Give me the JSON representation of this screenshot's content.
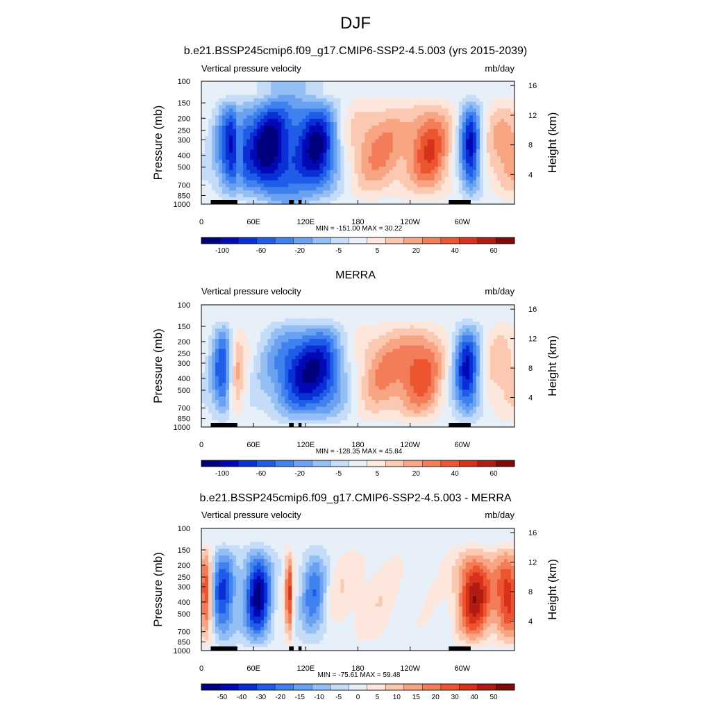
{
  "figure": {
    "title": "DJF"
  },
  "colors": {
    "scale": [
      "#00007f",
      "#0009b5",
      "#0a2fd6",
      "#1f5de8",
      "#3f81ee",
      "#6aa1f1",
      "#94bff5",
      "#c4dcf8",
      "#e7eff9",
      "#fde7dc",
      "#fbc9b1",
      "#f8a584",
      "#f37d58",
      "#ec5530",
      "#d8311c",
      "#b01c12",
      "#7f0a0a"
    ]
  },
  "chart_data": [
    {
      "type": "heatmap",
      "title": "b.e21.BSSP245cmip6.f09_g17.CMIP6-SSP2-4.5.003 (yrs 2015-2039)",
      "left_label": "Vertical pressure velocity",
      "right_label": "mb/day",
      "ylabel": "Pressure (mb)",
      "ylabel_right": "Height (km)",
      "xticks": [
        "0",
        "60E",
        "120E",
        "180",
        "120W",
        "60W"
      ],
      "yticks": [
        "100",
        "150",
        "200",
        "250",
        "300",
        "400",
        "500",
        "700",
        "850",
        "1000"
      ],
      "yticks_right": [
        "16",
        "12",
        "8",
        "4"
      ],
      "stats": "MIN = -151.00  MAX =  30.22",
      "colorbar_labels": [
        "-100",
        "-60",
        "-20",
        "-5",
        "5",
        "20",
        "40",
        "60"
      ],
      "min": -151.0,
      "max": 30.22
    },
    {
      "type": "heatmap",
      "title": "MERRA",
      "left_label": "Vertical pressure velocity",
      "right_label": "mb/day",
      "ylabel": "Pressure (mb)",
      "ylabel_right": "Height (km)",
      "xticks": [
        "0",
        "60E",
        "120E",
        "180",
        "120W",
        "60W"
      ],
      "yticks": [
        "100",
        "150",
        "200",
        "250",
        "300",
        "400",
        "500",
        "700",
        "850",
        "1000"
      ],
      "yticks_right": [
        "16",
        "12",
        "8",
        "4"
      ],
      "stats": "MIN = -128.35  MAX =  45.84",
      "colorbar_labels": [
        "-100",
        "-60",
        "-20",
        "-5",
        "5",
        "20",
        "40",
        "60"
      ],
      "min": -128.35,
      "max": 45.84
    },
    {
      "type": "heatmap",
      "title": "b.e21.BSSP245cmip6.f09_g17.CMIP6-SSP2-4.5.003 - MERRA",
      "left_label": "Vertical pressure velocity",
      "right_label": "mb/day",
      "ylabel": "Pressure (mb)",
      "ylabel_right": "Height (km)",
      "xticks": [
        "0",
        "60E",
        "120E",
        "180",
        "120W",
        "60W"
      ],
      "yticks": [
        "100",
        "150",
        "200",
        "250",
        "300",
        "400",
        "500",
        "700",
        "850",
        "1000"
      ],
      "yticks_right": [
        "16",
        "12",
        "8",
        "4"
      ],
      "stats": "MIN = -75.61  MAX =  59.48",
      "colorbar_labels": [
        "-50",
        "-40",
        "-30",
        "-20",
        "-15",
        "-10",
        "-5",
        "0",
        "5",
        "10",
        "15",
        "20",
        "30",
        "40",
        "50"
      ],
      "min": -75.61,
      "max": 59.48
    }
  ]
}
